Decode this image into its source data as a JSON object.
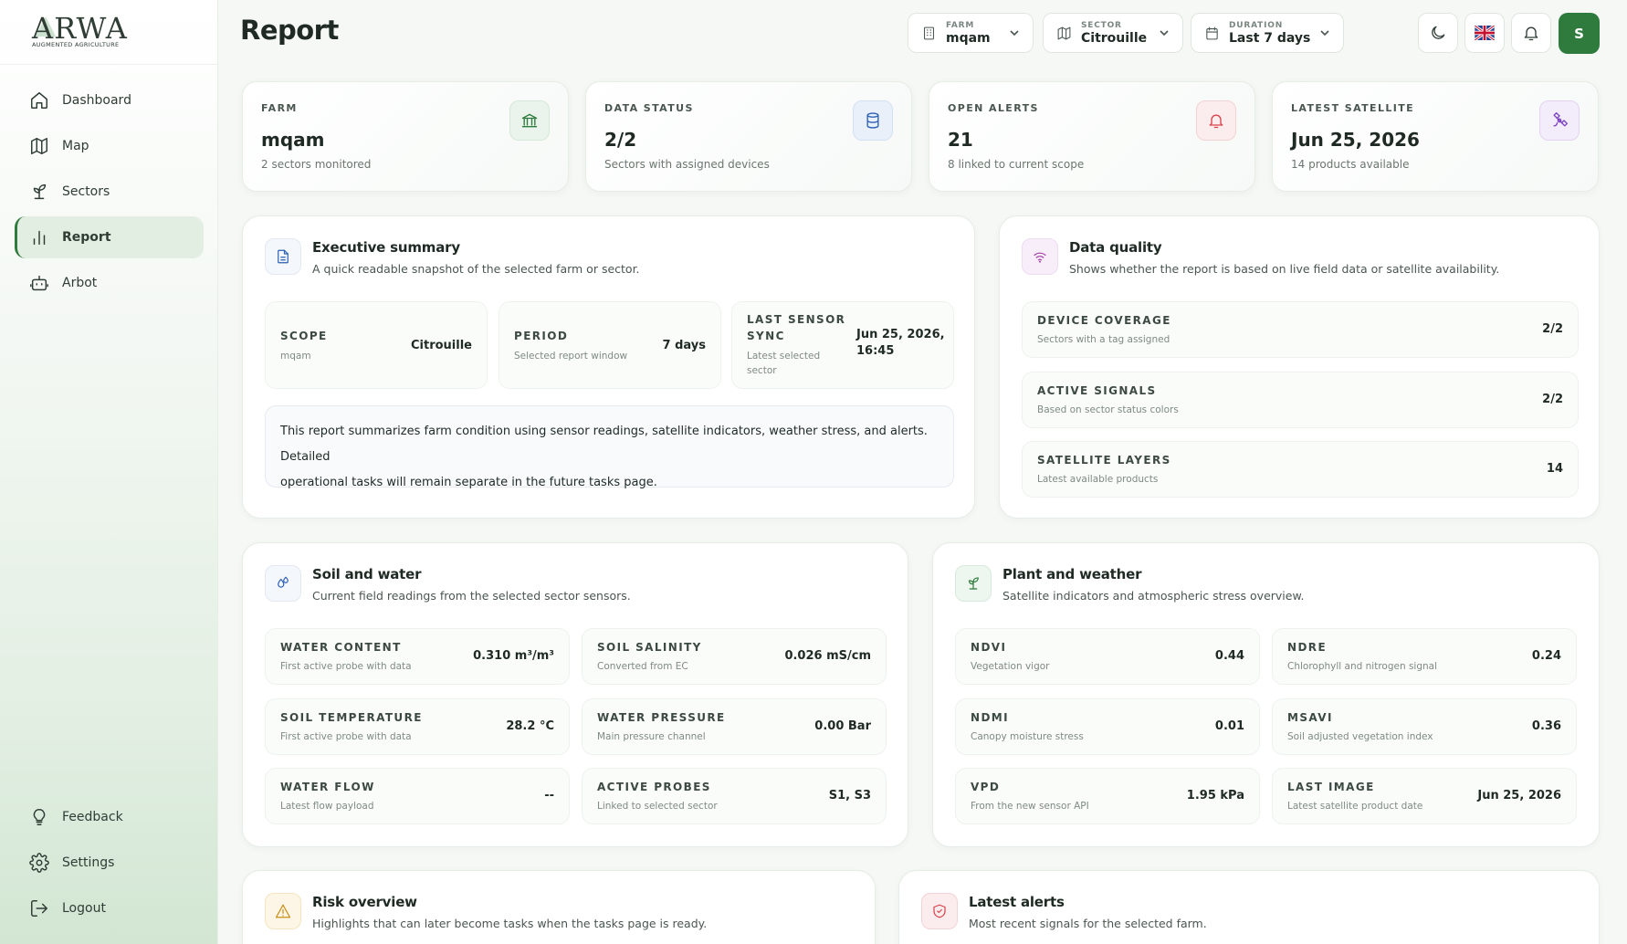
{
  "brand": {
    "name": "ARWA",
    "tagline": "AUGMENTED AGRICULTURE"
  },
  "sidebar": {
    "items": [
      {
        "label": "Dashboard",
        "icon": "home-icon"
      },
      {
        "label": "Map",
        "icon": "map-icon"
      },
      {
        "label": "Sectors",
        "icon": "sprout-icon"
      },
      {
        "label": "Report",
        "icon": "bar-chart-icon",
        "active": true
      },
      {
        "label": "Arbot",
        "icon": "robot-icon"
      }
    ],
    "bottom": [
      {
        "label": "Feedback",
        "icon": "lightbulb-icon"
      },
      {
        "label": "Settings",
        "icon": "gear-icon"
      },
      {
        "label": "Logout",
        "icon": "logout-icon"
      }
    ]
  },
  "header": {
    "title": "Report",
    "filters": {
      "farm": {
        "label": "FARM",
        "value": "mqam"
      },
      "sector": {
        "label": "SECTOR",
        "value": "Citrouille"
      },
      "duration": {
        "label": "DURATION",
        "value": "Last 7 days"
      }
    },
    "avatar_initial": "S"
  },
  "kpis": [
    {
      "label": "FARM",
      "value": "mqam",
      "sub": "2 sectors monitored",
      "icon": "bank-icon",
      "color": "#2f7a3d"
    },
    {
      "label": "DATA STATUS",
      "value": "2/2",
      "sub": "Sectors with assigned devices",
      "icon": "database-icon",
      "color": "#2b5fb4"
    },
    {
      "label": "OPEN ALERTS",
      "value": "21",
      "sub": "8 linked to current scope",
      "icon": "bell-icon",
      "color": "#d9424b"
    },
    {
      "label": "LATEST SATELLITE",
      "value": "Jun 25, 2026",
      "sub": "14 products available",
      "icon": "satellite-icon",
      "color": "#7b3fbf"
    }
  ],
  "executive": {
    "title": "Executive summary",
    "subtitle": "A quick readable snapshot of the selected farm or sector.",
    "cells": [
      {
        "label": "SCOPE",
        "sub": "mqam",
        "value": "Citrouille"
      },
      {
        "label": "PERIOD",
        "sub": "Selected report window",
        "value": "7 days"
      },
      {
        "label_line1": "LAST SENSOR",
        "label_line2": "SYNC",
        "sub_line1": "Latest selected",
        "sub_line2": "sector",
        "value_line1": "Jun 25, 2026,",
        "value_line2": "16:45"
      }
    ],
    "note_line1": "This report summarizes farm condition using sensor readings, satellite indicators, weather stress, and alerts. Detailed",
    "note_line2": "operational tasks will remain separate in the future tasks page."
  },
  "quality": {
    "title": "Data quality",
    "subtitle": "Shows whether the report is based on live field data or satellite availability.",
    "rows": [
      {
        "label": "DEVICE COVERAGE",
        "sub": "Sectors with a tag assigned",
        "value": "2/2"
      },
      {
        "label": "ACTIVE SIGNALS",
        "sub": "Based on sector status colors",
        "value": "2/2"
      },
      {
        "label": "SATELLITE LAYERS",
        "sub": "Latest available products",
        "value": "14"
      }
    ]
  },
  "soil": {
    "title": "Soil and water",
    "subtitle": "Current field readings from the selected sector sensors.",
    "cells": [
      {
        "label": "WATER CONTENT",
        "sub": "First active probe with data",
        "value": "0.310 m³/m³"
      },
      {
        "label": "SOIL SALINITY",
        "sub": "Converted from EC",
        "value": "0.026 mS/cm"
      },
      {
        "label": "SOIL TEMPERATURE",
        "sub": "First active probe with data",
        "value": "28.2 °C"
      },
      {
        "label": "WATER PRESSURE",
        "sub": "Main pressure channel",
        "value": "0.00 Bar"
      },
      {
        "label": "WATER FLOW",
        "sub": "Latest flow payload",
        "value": "--"
      },
      {
        "label": "ACTIVE PROBES",
        "sub": "Linked to selected sector",
        "value": "S1, S3"
      }
    ]
  },
  "plant": {
    "title": "Plant and weather",
    "subtitle": "Satellite indicators and atmospheric stress overview.",
    "cells": [
      {
        "label": "NDVI",
        "sub": "Vegetation vigor",
        "value": "0.44"
      },
      {
        "label": "NDRE",
        "sub": "Chlorophyll and nitrogen signal",
        "value": "0.24"
      },
      {
        "label": "NDMI",
        "sub": "Canopy moisture stress",
        "value": "0.01"
      },
      {
        "label": "MSAVI",
        "sub": "Soil adjusted vegetation index",
        "value": "0.36"
      },
      {
        "label": "VPD",
        "sub": "From the new sensor API",
        "value": "1.95 kPa"
      },
      {
        "label": "LAST IMAGE",
        "sub": "Latest satellite product date",
        "value": "Jun 25, 2026"
      }
    ]
  },
  "risk": {
    "title": "Risk overview",
    "subtitle": "Highlights that can later become tasks when the tasks page is ready."
  },
  "alerts": {
    "title": "Latest alerts",
    "subtitle": "Most recent signals for the selected farm."
  }
}
